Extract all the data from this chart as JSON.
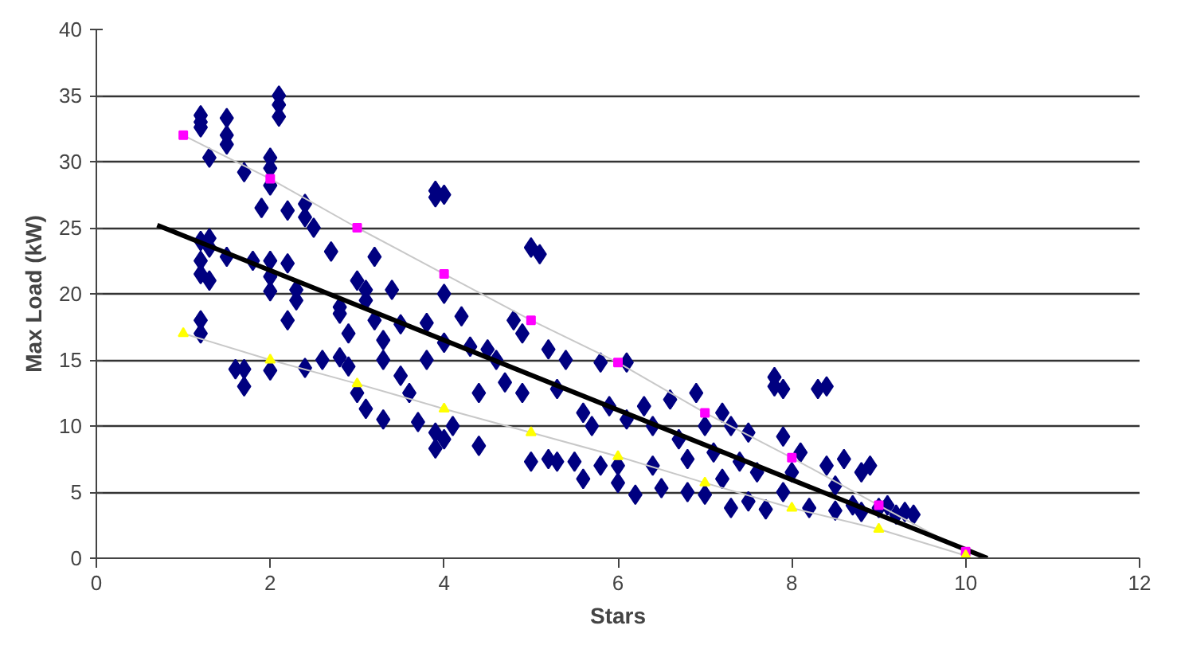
{
  "chart_data": {
    "type": "scatter",
    "xlabel": "Stars",
    "ylabel": "Max Load (kW)",
    "xlim": [
      0,
      12
    ],
    "ylim": [
      0,
      40
    ],
    "xticks": [
      0,
      2,
      4,
      6,
      8,
      10,
      12
    ],
    "yticks": [
      0,
      5,
      10,
      15,
      20,
      25,
      30,
      35,
      40
    ],
    "grid": "y",
    "marker": "diamond",
    "series": [
      {
        "color": "#000080",
        "x": [
          1.2,
          1.2,
          1.2,
          1.3,
          1.5,
          1.5,
          1.5,
          1.2,
          1.2,
          1.2,
          1.3,
          1.3,
          1.2,
          1.2,
          1.3,
          1.5,
          1.6,
          1.7,
          1.7,
          1.7,
          1.8,
          1.9,
          2,
          2,
          2,
          2,
          2,
          2.1,
          2.1,
          2.1,
          2,
          2,
          2.2,
          2.2,
          2.2,
          2.3,
          2.3,
          2.4,
          2.4,
          2.5,
          2.4,
          2.6,
          2.7,
          2.8,
          2.8,
          2.8,
          2.9,
          2.9,
          3,
          3,
          3.1,
          3.1,
          3.1,
          3.2,
          3.2,
          3.3,
          3.3,
          3.3,
          3.4,
          3.5,
          3.5,
          3.6,
          3.7,
          3.8,
          3.8,
          3.9,
          3.9,
          4,
          3.9,
          3.9,
          4,
          4,
          4,
          4.1,
          4.2,
          4.3,
          4.4,
          4.4,
          4.5,
          4.6,
          4.7,
          4.8,
          4.9,
          4.9,
          5,
          5.1,
          5,
          5.2,
          5.2,
          5.3,
          5.3,
          5.4,
          5.5,
          5.6,
          5.6,
          5.7,
          5.8,
          5.8,
          5.9,
          6,
          6,
          6.1,
          6.1,
          6.2,
          6.3,
          6.4,
          6.4,
          6.5,
          6.6,
          6.7,
          6.8,
          6.8,
          6.9,
          7,
          7,
          7.1,
          7.2,
          7.2,
          7.3,
          7.3,
          7.4,
          7.5,
          7.5,
          7.6,
          7.7,
          7.8,
          7.8,
          7.9,
          7.9,
          7.9,
          8,
          8.1,
          8.2,
          8.3,
          8.4,
          8.4,
          8.5,
          8.5,
          8.6,
          8.7,
          8.8,
          8.8,
          8.9,
          9,
          9.1,
          9.2,
          9.3,
          9.4
        ],
        "values": [
          33.5,
          33,
          32.6,
          30.3,
          33.3,
          32,
          31.3,
          24,
          22.5,
          21.5,
          24.2,
          21,
          18,
          17,
          23.5,
          22.8,
          14.3,
          14.3,
          13,
          29.2,
          22.5,
          26.5,
          30.3,
          29.5,
          28.2,
          22.5,
          21.3,
          35,
          34.3,
          33.4,
          20.2,
          14.2,
          26.3,
          22.3,
          18,
          20.3,
          19.5,
          26.8,
          25.8,
          25,
          14.4,
          15,
          23.2,
          19,
          18.5,
          15.2,
          17,
          14.5,
          21,
          12.5,
          20.3,
          19.5,
          11.3,
          22.8,
          18,
          16.5,
          15,
          10.5,
          20.3,
          17.7,
          13.8,
          12.5,
          10.3,
          17.8,
          15,
          27.8,
          27.3,
          27.5,
          9.5,
          8.3,
          20,
          16.3,
          9,
          10,
          18.3,
          16,
          12.5,
          8.5,
          15.8,
          15,
          13.3,
          18,
          17,
          12.5,
          23.5,
          23,
          7.3,
          15.8,
          7.5,
          12.8,
          7.3,
          15,
          7.3,
          11,
          6,
          10,
          14.8,
          7,
          11.5,
          7,
          5.7,
          14.8,
          10.5,
          4.8,
          11.5,
          10,
          7,
          5.3,
          12,
          9,
          7.5,
          5,
          12.5,
          10,
          4.8,
          8,
          11,
          6,
          10,
          3.8,
          7.3,
          9.5,
          4.3,
          6.5,
          3.7,
          13.7,
          13,
          12.8,
          9.2,
          5,
          6.5,
          8,
          3.8,
          12.8,
          13,
          7,
          5.5,
          3.6,
          7.5,
          4,
          6.5,
          3.5,
          7,
          3.8,
          4,
          3.3,
          3.5,
          3.3
        ]
      },
      {
        "type": "line",
        "color": "#c8c8c8",
        "marker": "square",
        "colors": [
          "#ff00ff",
          "#ff00ff",
          "#ff00ff",
          "#ff00ff",
          "#ff00ff",
          "#ff00ff",
          "#ff00ff",
          "#ff00ff",
          "#ff00ff",
          "#ff00ff"
        ],
        "x": [
          1,
          2,
          3,
          4,
          5,
          6,
          7,
          8,
          9,
          10
        ],
        "values": [
          32,
          28.7,
          25,
          21.5,
          18,
          14.8,
          11,
          7.6,
          4,
          0.5
        ]
      },
      {
        "type": "line",
        "color": "#c8c8c8",
        "marker": "triangle",
        "colors": [
          "#ffff00",
          "#ffff00",
          "#ffff00",
          "#ffff00",
          "#ffff00",
          "#ffff00",
          "#ffff00",
          "#ffff00",
          "#ffff00",
          "#ffff00"
        ],
        "x": [
          1,
          2,
          3,
          4,
          5,
          6,
          7,
          8,
          9,
          10
        ],
        "values": [
          17,
          15,
          13.2,
          11.3,
          9.5,
          7.7,
          5.7,
          3.8,
          2.2,
          0.2
        ]
      },
      {
        "type": "line",
        "color": "#000000",
        "marker": "none",
        "x": [
          0.7,
          10.25
        ],
        "values": [
          25.2,
          0
        ]
      }
    ]
  }
}
